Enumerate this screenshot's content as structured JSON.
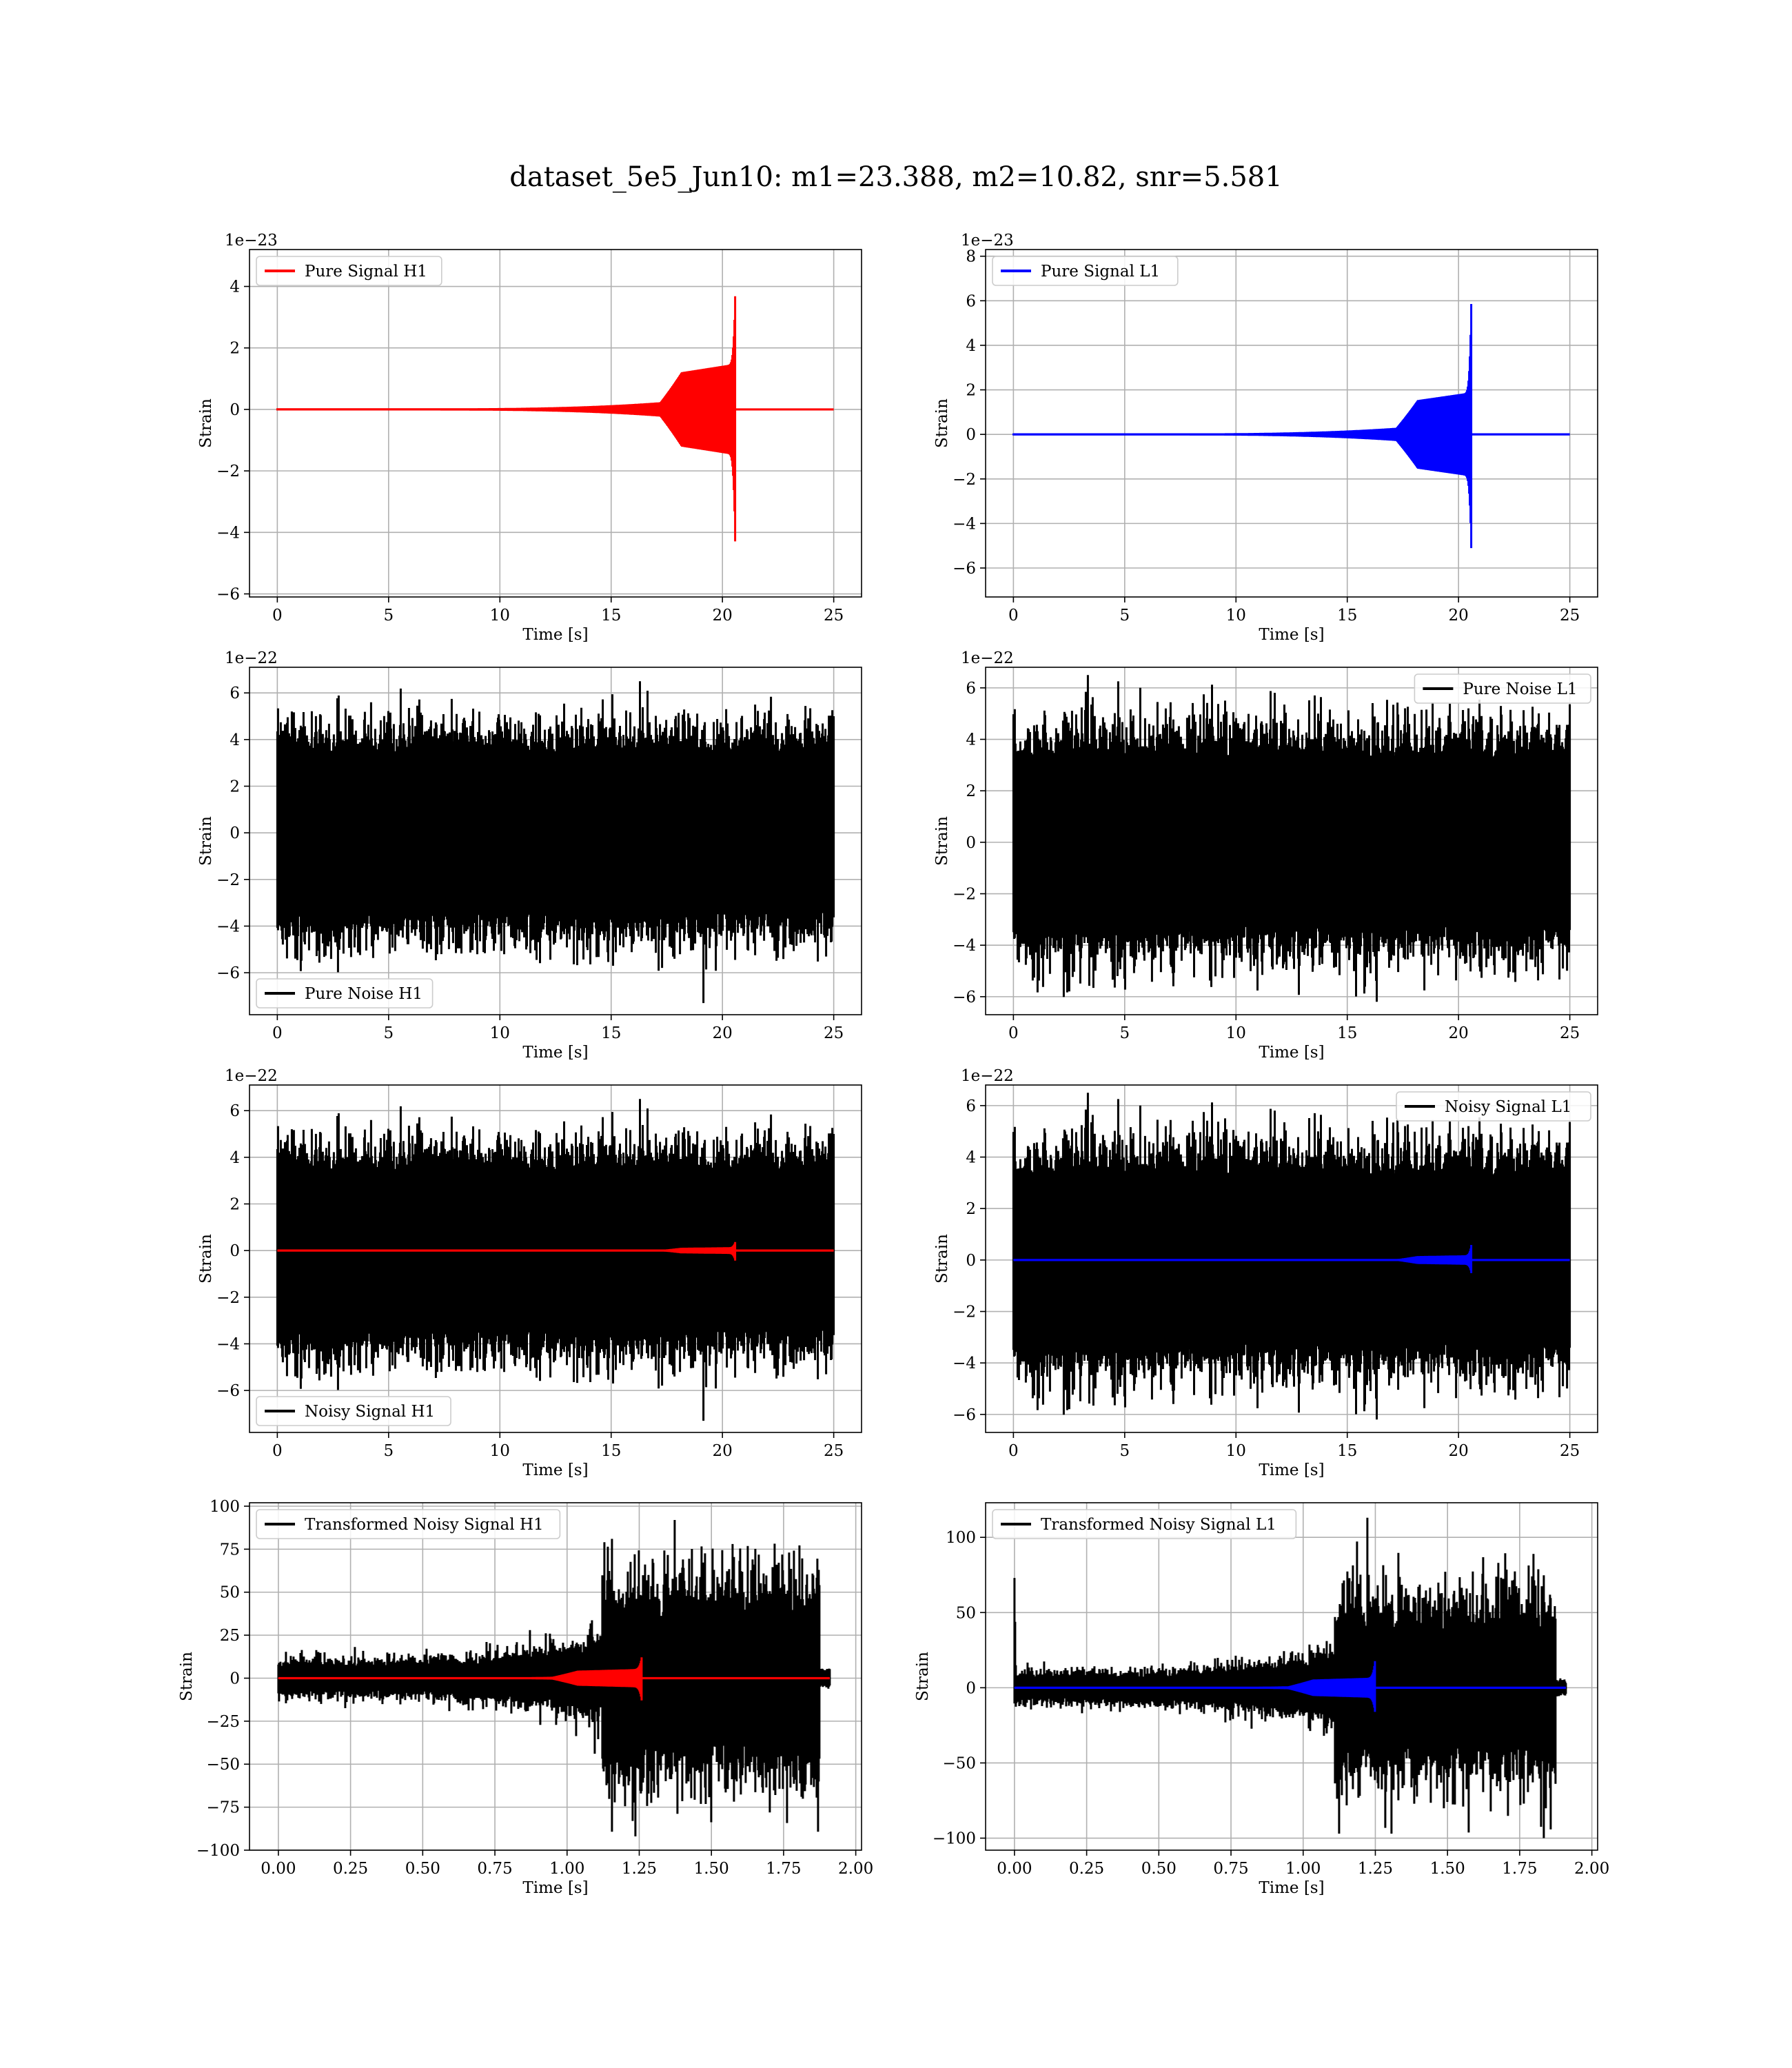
{
  "figure": {
    "title": "dataset_5e5_Jun10: m1=23.388, m2=10.82, snr=5.581"
  },
  "colors": {
    "h1_signal": "#ff0000",
    "l1_signal": "#0000ff",
    "noise": "#000000",
    "grid": "#b0b0b0"
  },
  "chart_data": [
    {
      "id": "pure-signal-h1",
      "type": "line",
      "xlabel": "Time [s]",
      "ylabel": "Strain",
      "offset_text": "1e−23",
      "xlim": [
        -1.25,
        26.25
      ],
      "ylim": [
        -6.1,
        5.2
      ],
      "xticks": [
        0,
        5,
        10,
        15,
        20,
        25
      ],
      "yticks": [
        -6,
        -4,
        -2,
        0,
        2,
        4
      ],
      "grid": true,
      "legend_position": "upper left",
      "series": [
        {
          "name": "Pure Signal H1",
          "color": "#ff0000",
          "kind": "chirp",
          "t_start": 0,
          "t_end": 25,
          "merger_time": 20.6,
          "peak_positive": 4.7,
          "peak_negative": -5.6,
          "plateau_amplitude": 1.1,
          "plateau_start": 17.2,
          "early_amplitude": 0.12
        }
      ]
    },
    {
      "id": "pure-signal-l1",
      "type": "line",
      "xlabel": "Time [s]",
      "ylabel": "Strain",
      "offset_text": "1e−23",
      "xlim": [
        -1.25,
        26.25
      ],
      "ylim": [
        -7.3,
        8.3
      ],
      "xticks": [
        0,
        5,
        10,
        15,
        20,
        25
      ],
      "yticks": [
        -6,
        -4,
        -2,
        0,
        2,
        4,
        6,
        8
      ],
      "grid": true,
      "legend_position": "upper left",
      "series": [
        {
          "name": "Pure Signal L1",
          "color": "#0000ff",
          "kind": "chirp",
          "t_start": 0,
          "t_end": 25,
          "merger_time": 20.6,
          "peak_positive": 7.7,
          "peak_negative": -6.6,
          "plateau_amplitude": 1.4,
          "plateau_start": 17.2,
          "early_amplitude": 0.15
        }
      ]
    },
    {
      "id": "pure-noise-h1",
      "type": "line",
      "xlabel": "Time [s]",
      "ylabel": "Strain",
      "offset_text": "1e−22",
      "xlim": [
        -1.25,
        26.25
      ],
      "ylim": [
        -7.8,
        7.1
      ],
      "xticks": [
        0,
        5,
        10,
        15,
        20,
        25
      ],
      "yticks": [
        -6,
        -4,
        -2,
        0,
        2,
        4,
        6
      ],
      "grid": true,
      "legend_position": "lower left",
      "series": [
        {
          "name": "Pure Noise H1",
          "color": "#000000",
          "kind": "noise",
          "t_start": 0,
          "t_end": 25,
          "core_amplitude": 3.3,
          "max_value": 6.5,
          "min_value": -7.3,
          "seed": 11
        }
      ]
    },
    {
      "id": "pure-noise-l1",
      "type": "line",
      "xlabel": "Time [s]",
      "ylabel": "Strain",
      "offset_text": "1e−22",
      "xlim": [
        -1.25,
        26.25
      ],
      "ylim": [
        -6.7,
        6.8
      ],
      "xticks": [
        0,
        5,
        10,
        15,
        20,
        25
      ],
      "yticks": [
        -6,
        -4,
        -2,
        0,
        2,
        4,
        6
      ],
      "grid": true,
      "legend_position": "upper right",
      "series": [
        {
          "name": "Pure Noise L1",
          "color": "#000000",
          "kind": "noise",
          "t_start": 0,
          "t_end": 25,
          "core_amplitude": 3.2,
          "max_value": 6.5,
          "min_value": -6.2,
          "seed": 23
        }
      ]
    },
    {
      "id": "noisy-signal-h1",
      "type": "line",
      "xlabel": "Time [s]",
      "ylabel": "Strain",
      "offset_text": "1e−22",
      "xlim": [
        -1.25,
        26.25
      ],
      "ylim": [
        -7.8,
        7.1
      ],
      "xticks": [
        0,
        5,
        10,
        15,
        20,
        25
      ],
      "yticks": [
        -6,
        -4,
        -2,
        0,
        2,
        4,
        6
      ],
      "grid": true,
      "legend_position": "lower left",
      "series": [
        {
          "name": "Noisy Signal H1",
          "color": "#000000",
          "kind": "noise",
          "t_start": 0,
          "t_end": 25,
          "core_amplitude": 3.3,
          "max_value": 6.5,
          "min_value": -7.3,
          "seed": 11
        },
        {
          "color": "#ff0000",
          "kind": "chirp",
          "t_start": 0,
          "t_end": 25,
          "merger_time": 20.6,
          "peak_positive": 0.47,
          "peak_negative": -0.56,
          "plateau_amplitude": 0.11,
          "plateau_start": 17.2,
          "early_amplitude": 0.012
        }
      ]
    },
    {
      "id": "noisy-signal-l1",
      "type": "line",
      "xlabel": "Time [s]",
      "ylabel": "Strain",
      "offset_text": "1e−22",
      "xlim": [
        -1.25,
        26.25
      ],
      "ylim": [
        -6.7,
        6.8
      ],
      "xticks": [
        0,
        5,
        10,
        15,
        20,
        25
      ],
      "yticks": [
        -6,
        -4,
        -2,
        0,
        2,
        4,
        6
      ],
      "grid": true,
      "legend_position": "upper right",
      "series": [
        {
          "name": "Noisy Signal L1",
          "color": "#000000",
          "kind": "noise",
          "t_start": 0,
          "t_end": 25,
          "core_amplitude": 3.2,
          "max_value": 6.5,
          "min_value": -6.2,
          "seed": 23
        },
        {
          "color": "#0000ff",
          "kind": "chirp",
          "t_start": 0,
          "t_end": 25,
          "merger_time": 20.6,
          "peak_positive": 0.77,
          "peak_negative": -0.66,
          "plateau_amplitude": 0.14,
          "plateau_start": 17.2,
          "early_amplitude": 0.015
        }
      ]
    },
    {
      "id": "transformed-noisy-signal-h1",
      "type": "line",
      "xlabel": "Time [s]",
      "ylabel": "Strain",
      "offset_text": "",
      "xlim": [
        -0.1,
        2.02
      ],
      "ylim": [
        -100,
        102
      ],
      "xticks": [
        0.0,
        0.25,
        0.5,
        0.75,
        1.0,
        1.25,
        1.5,
        1.75,
        2.0
      ],
      "xticklabels": [
        "0.00",
        "0.25",
        "0.50",
        "0.75",
        "1.00",
        "1.25",
        "1.50",
        "1.75",
        "2.00"
      ],
      "yticks": [
        -100,
        -75,
        -50,
        -25,
        0,
        25,
        50,
        75,
        100
      ],
      "grid": true,
      "legend_position": "upper left",
      "series": [
        {
          "name": "Transformed Noisy Signal H1",
          "color": "#000000",
          "kind": "whitened",
          "t_start": 0,
          "t_end": 1.91,
          "quiet_end": 1.12,
          "loud_end": 1.875,
          "quiet_amplitude": 7,
          "rising_amplitude": 16,
          "loud_amplitude": 38,
          "max_value": 92,
          "min_value": -92,
          "seed": 31
        },
        {
          "color": "#ff0000",
          "kind": "chirp",
          "t_start": 0,
          "t_end": 1.91,
          "merger_time": 1.26,
          "peak_positive": 14,
          "peak_negative": -15,
          "plateau_amplitude": 4,
          "plateau_start": 0.95,
          "early_amplitude": 0.4
        }
      ]
    },
    {
      "id": "transformed-noisy-signal-l1",
      "type": "line",
      "xlabel": "Time [s]",
      "ylabel": "Strain",
      "offset_text": "",
      "xlim": [
        -0.1,
        2.02
      ],
      "ylim": [
        -108,
        123
      ],
      "xticks": [
        0.0,
        0.25,
        0.5,
        0.75,
        1.0,
        1.25,
        1.5,
        1.75,
        2.0
      ],
      "xticklabels": [
        "0.00",
        "0.25",
        "0.50",
        "0.75",
        "1.00",
        "1.25",
        "1.50",
        "1.75",
        "2.00"
      ],
      "yticks": [
        -100,
        -50,
        0,
        50,
        100
      ],
      "grid": true,
      "legend_position": "upper left",
      "series": [
        {
          "name": "Transformed Noisy Signal L1",
          "color": "#000000",
          "kind": "whitened",
          "t_start": 0,
          "t_end": 1.91,
          "quiet_end": 1.11,
          "loud_end": 1.875,
          "quiet_amplitude": 7,
          "rising_amplitude": 16,
          "loud_amplitude": 40,
          "max_value": 113,
          "min_value": -100,
          "initial_spike": 73,
          "seed": 47
        },
        {
          "color": "#0000ff",
          "kind": "chirp",
          "t_start": 0,
          "t_end": 1.91,
          "merger_time": 1.25,
          "peak_positive": 20,
          "peak_negative": -18,
          "plateau_amplitude": 5,
          "plateau_start": 0.95,
          "early_amplitude": 0.4
        }
      ]
    }
  ]
}
